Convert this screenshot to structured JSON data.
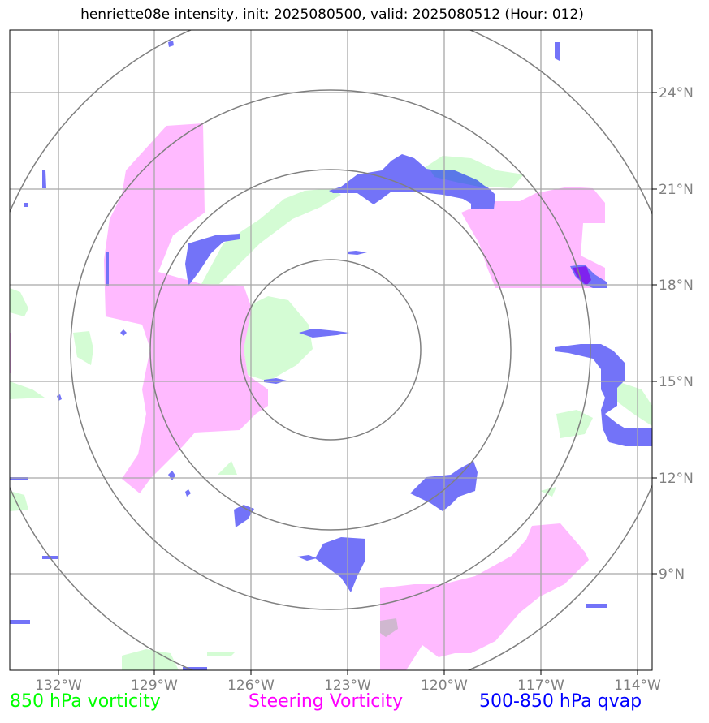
{
  "title": "henriette08e intensity, init: 2025080500, valid: 2025080512 (Hour: 012)",
  "longitude_labels": [
    "132°W",
    "129°W",
    "126°W",
    "123°W",
    "120°W",
    "117°W",
    "114°W"
  ],
  "latitude_labels": [
    "24°N",
    "21°N",
    "18°N",
    "15°N",
    "12°N",
    "9°N"
  ],
  "legend": [
    {
      "label": "850 hPa vorticity",
      "color": "#00ff00"
    },
    {
      "label": "Steering Vorticity",
      "color": "#ff00ff"
    },
    {
      "label": "500-850 hPa qvap",
      "color": "#0000ff"
    }
  ],
  "fill_colors": {
    "vorticity_850": "#ccffcc",
    "steering_vorticity": "#ffb3ff",
    "qvap": "#5555ff"
  }
}
